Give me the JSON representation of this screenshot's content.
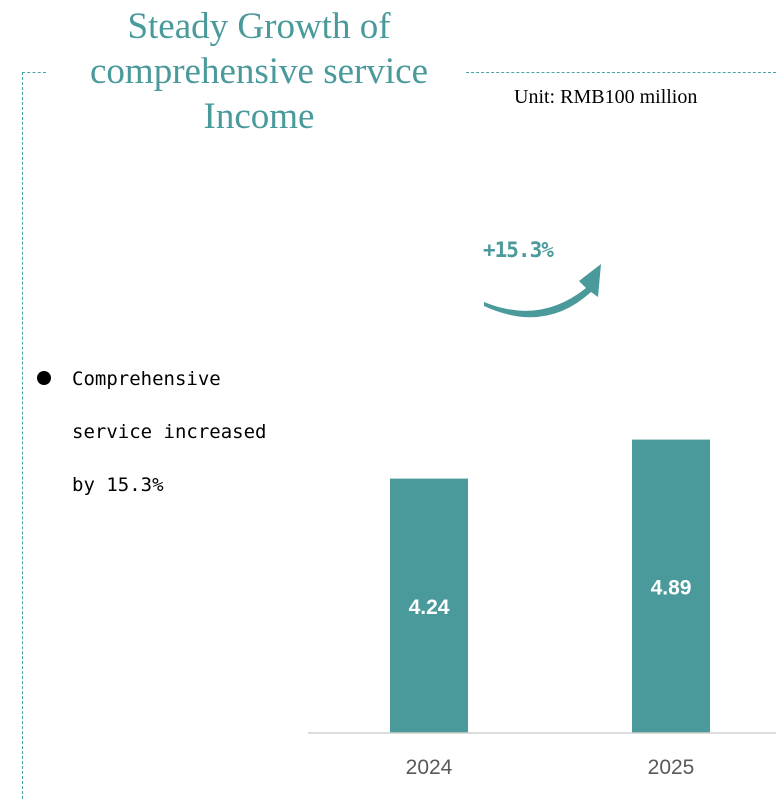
{
  "title": "Steady Growth of comprehensive service Income",
  "unit": "Unit: RMB100 million",
  "growth_label": "+15.3%",
  "bullet": {
    "lines": [
      "Comprehensive",
      "service increased",
      "by 15.3%"
    ]
  },
  "colors": {
    "bar": "#4a9a9b",
    "accent": "#4a9a9b",
    "axis": "#d0d0d0",
    "tick_text": "#595959",
    "label_text": "#ffffff"
  },
  "chart_data": {
    "type": "bar",
    "categories": [
      "2024",
      "2025"
    ],
    "values": [
      4.24,
      4.89
    ],
    "title": "Steady Growth of comprehensive service Income",
    "ylabel": "",
    "xlabel": "",
    "ylim": [
      0,
      5
    ],
    "grid": false
  }
}
